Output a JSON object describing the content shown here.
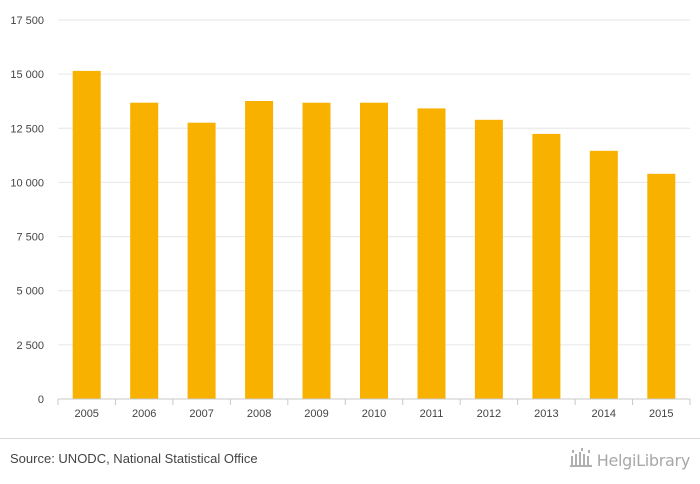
{
  "chart_data": {
    "type": "bar",
    "categories": [
      "2005",
      "2006",
      "2007",
      "2008",
      "2009",
      "2010",
      "2011",
      "2012",
      "2013",
      "2014",
      "2015"
    ],
    "values": [
      15150,
      13680,
      12760,
      13760,
      13680,
      13680,
      13420,
      12890,
      12240,
      11460,
      10400
    ],
    "y_ticks": [
      "0",
      "2 500",
      "5 000",
      "7 500",
      "10 000",
      "12 500",
      "15 000",
      "17 500"
    ],
    "ylim": [
      0,
      17500
    ],
    "grid": true,
    "bar_color": "#F9B100"
  },
  "footer": {
    "source": "Source: UNODC, National Statistical Office",
    "brand": "HelgiLibrary",
    "brand_icon": "library-building-icon"
  }
}
